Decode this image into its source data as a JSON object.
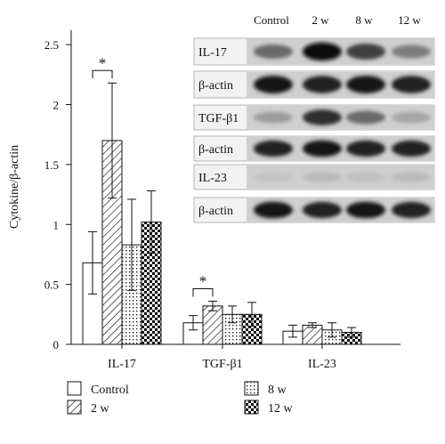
{
  "chart_data": {
    "type": "bar",
    "ylabel": "Cytokine/β-actin",
    "ylim": [
      0,
      2.6
    ],
    "yticks": [
      "0",
      "0.5",
      "1",
      "1.5",
      "2",
      "2.5"
    ],
    "categories": [
      "IL-17",
      "TGF-β1",
      "IL-23"
    ],
    "series": [
      {
        "name": "Control",
        "values": [
          0.68,
          0.18,
          0.11
        ],
        "errors": [
          0.26,
          0.06,
          0.05
        ]
      },
      {
        "name": "2 w",
        "values": [
          1.7,
          0.32,
          0.16
        ],
        "errors": [
          0.48,
          0.04,
          0.02
        ]
      },
      {
        "name": "8 w",
        "values": [
          0.83,
          0.25,
          0.12
        ],
        "errors": [
          0.38,
          0.07,
          0.06
        ]
      },
      {
        "name": "12 w",
        "values": [
          1.02,
          0.25,
          0.1
        ],
        "errors": [
          0.26,
          0.1,
          0.04
        ]
      }
    ],
    "significance": [
      {
        "category": "IL-17",
        "between": [
          "Control",
          "2 w"
        ],
        "mark": "*"
      },
      {
        "category": "TGF-β1",
        "between": [
          "Control",
          "2 w"
        ],
        "mark": "*"
      }
    ],
    "grid": false,
    "legend_placement": "bottom"
  },
  "blot_inset": {
    "columns": [
      "Control",
      "2 w",
      "8 w",
      "12 w"
    ],
    "rows": [
      "IL-17",
      "β-actin",
      "TGF-β1",
      "β-actin",
      "IL-23",
      "β-actin"
    ],
    "band_intensity": [
      [
        0.55,
        1.0,
        0.75,
        0.45
      ],
      [
        0.95,
        0.9,
        0.95,
        0.9
      ],
      [
        0.3,
        0.85,
        0.55,
        0.25
      ],
      [
        0.9,
        0.95,
        0.9,
        0.9
      ],
      [
        0.1,
        0.15,
        0.12,
        0.15
      ],
      [
        0.95,
        0.9,
        0.95,
        0.9
      ]
    ]
  }
}
